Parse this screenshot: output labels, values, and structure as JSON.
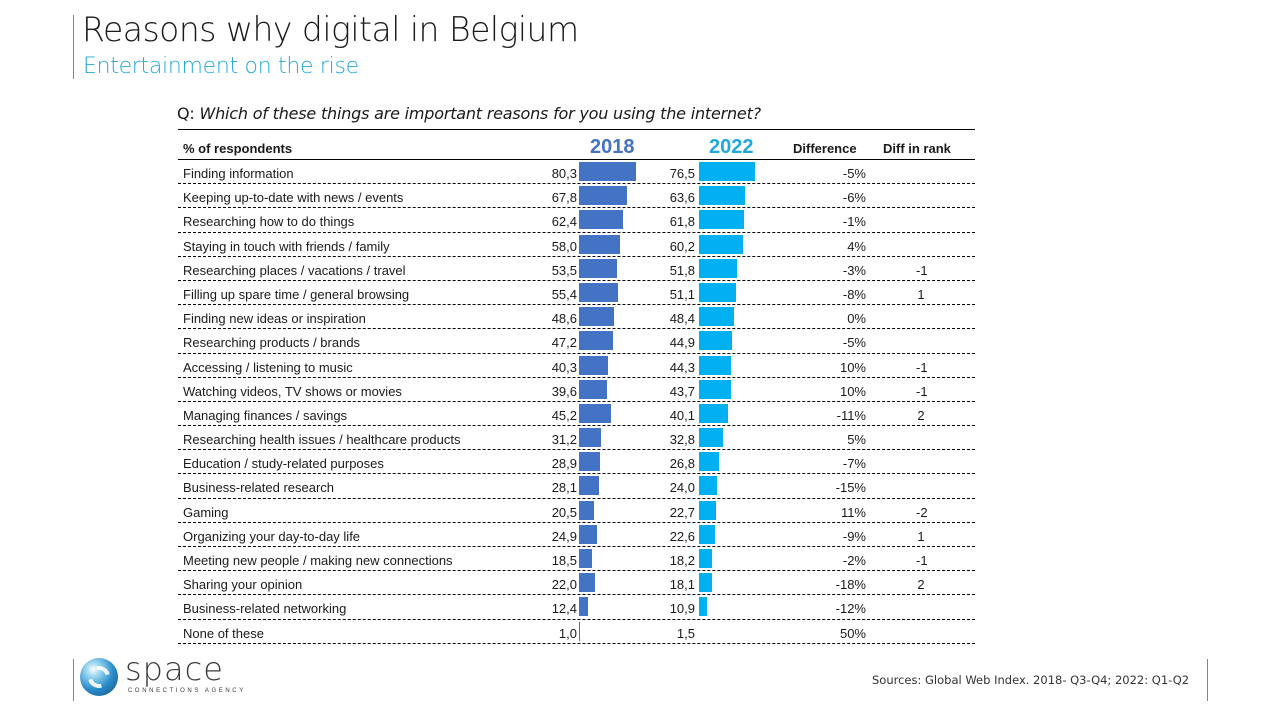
{
  "header": {
    "title": "Reasons why digital in Belgium",
    "subtitle": "Entertainment on the rise"
  },
  "question": {
    "prefix": "Q:",
    "text": "Which of these things are important reasons for you using the internet?"
  },
  "colors": {
    "accent": "#2aa6c9",
    "subtitle": "#24a9d8",
    "bar_2018": "#4472c4",
    "bar_2022": "#00b0f0"
  },
  "chart_data": {
    "type": "table",
    "title": "Which of these things are important reasons for you using the internet?",
    "columns": [
      "% of respondents",
      "2018",
      "2022",
      "Difference",
      "Diff in rank"
    ],
    "bar_scale_max": 100,
    "categories": [
      "Finding information",
      "Keeping up-to-date with news / events",
      "Researching how to do things",
      "Staying in touch with friends / family",
      "Researching places / vacations / travel",
      "Filling up spare time / general browsing",
      "Finding new ideas or inspiration",
      "Researching products / brands",
      "Accessing / listening to music",
      "Watching videos, TV shows or movies",
      "Managing finances / savings",
      "Researching health issues / healthcare products",
      "Education / study-related purposes",
      "Business-related research",
      "Gaming",
      "Organizing your day-to-day life",
      "Meeting new people / making new connections",
      "Sharing your opinion",
      "Business-related networking",
      "None of these"
    ],
    "series": [
      {
        "name": "2018",
        "values": [
          80.3,
          67.8,
          62.4,
          58.0,
          53.5,
          55.4,
          48.6,
          47.2,
          40.3,
          39.6,
          45.2,
          31.2,
          28.9,
          28.1,
          20.5,
          24.9,
          18.5,
          22.0,
          12.4,
          1.0
        ],
        "labels": [
          "80,3",
          "67,8",
          "62,4",
          "58,0",
          "53,5",
          "55,4",
          "48,6",
          "47,2",
          "40,3",
          "39,6",
          "45,2",
          "31,2",
          "28,9",
          "28,1",
          "20,5",
          "24,9",
          "18,5",
          "22,0",
          "12,4",
          "1,0"
        ]
      },
      {
        "name": "2022",
        "values": [
          76.5,
          63.6,
          61.8,
          60.2,
          51.8,
          51.1,
          48.4,
          44.9,
          44.3,
          43.7,
          40.1,
          32.8,
          26.8,
          24.0,
          22.7,
          22.6,
          18.2,
          18.1,
          10.9,
          1.5
        ],
        "labels": [
          "76,5",
          "63,6",
          "61,8",
          "60,2",
          "51,8",
          "51,1",
          "48,4",
          "44,9",
          "44,3",
          "43,7",
          "40,1",
          "32,8",
          "26,8",
          "24,0",
          "22,7",
          "22,6",
          "18,2",
          "18,1",
          "10,9",
          "1,5"
        ]
      }
    ],
    "difference": [
      "-5%",
      "-6%",
      "-1%",
      "4%",
      "-3%",
      "-8%",
      "0%",
      "-5%",
      "10%",
      "10%",
      "-11%",
      "5%",
      "-7%",
      "-15%",
      "11%",
      "-9%",
      "-2%",
      "-18%",
      "-12%",
      "50%"
    ],
    "diff_in_rank": [
      "",
      "",
      "",
      "",
      "-1",
      "1",
      "",
      "",
      "-1",
      "-1",
      "2",
      "",
      "",
      "",
      "-2",
      "1",
      "-1",
      "2",
      "",
      ""
    ]
  },
  "footer": {
    "logo_word": "space",
    "logo_tagline": "CONNECTIONS AGENCY",
    "sources": "Sources: Global Web Index. 2018- Q3-Q4; 2022: Q1-Q2"
  }
}
